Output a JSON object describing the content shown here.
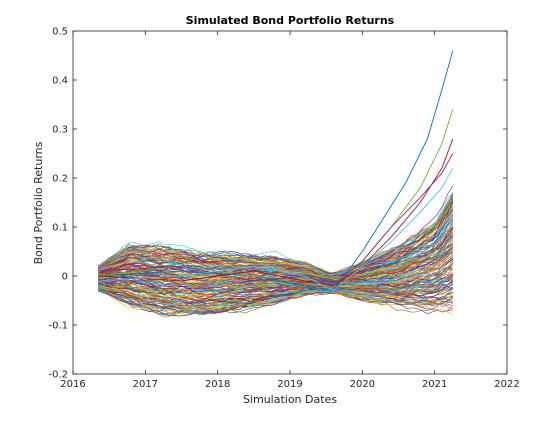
{
  "chart_data": {
    "type": "line",
    "title": "Simulated Bond Portfolio Returns",
    "xlabel": "Simulation Dates",
    "ylabel": "Bond Portfolio Returns",
    "xlim": [
      2016,
      2022
    ],
    "ylim": [
      -0.2,
      0.5
    ],
    "x_ticks": [
      "2016",
      "2017",
      "2018",
      "2019",
      "2020",
      "2021",
      "2022"
    ],
    "y_ticks": [
      "-0.2",
      "-0.1",
      "0",
      "0.1",
      "0.2",
      "0.3",
      "0.4",
      "0.5"
    ],
    "x_start": 2016.35,
    "x_end": 2021.25,
    "envelope": {
      "x": [
        2016.35,
        2016.8,
        2017.3,
        2017.8,
        2018.3,
        2018.8,
        2019.2,
        2019.6,
        2020.0,
        2020.5,
        2021.0,
        2021.25
      ],
      "upper": [
        0.03,
        0.085,
        0.08,
        0.07,
        0.065,
        0.055,
        0.035,
        0.01,
        0.04,
        0.08,
        0.14,
        0.22
      ],
      "lower": [
        -0.04,
        -0.08,
        -0.1,
        -0.1,
        -0.09,
        -0.07,
        -0.05,
        -0.04,
        -0.06,
        -0.08,
        -0.09,
        -0.1
      ]
    },
    "highlighted_series": [
      {
        "color": "#0072BD",
        "x": [
          2016.35,
          2017.5,
          2018.5,
          2019.2,
          2019.6,
          2019.8,
          2020.0,
          2020.3,
          2020.6,
          2020.9,
          2021.1,
          2021.25
        ],
        "values": [
          0.0,
          0.01,
          0.0,
          -0.02,
          -0.03,
          0.01,
          0.05,
          0.12,
          0.19,
          0.28,
          0.38,
          0.46
        ]
      },
      {
        "color": "#77AC30",
        "x": [
          2016.35,
          2017.5,
          2018.5,
          2019.2,
          2019.6,
          2020.0,
          2020.4,
          2020.8,
          2021.1,
          2021.25
        ],
        "values": [
          0.0,
          0.02,
          0.0,
          -0.01,
          -0.02,
          0.03,
          0.1,
          0.18,
          0.27,
          0.34
        ]
      },
      {
        "color": "#A2142F",
        "x": [
          2016.35,
          2017.5,
          2018.5,
          2019.2,
          2019.6,
          2020.0,
          2020.4,
          2020.8,
          2021.1,
          2021.25
        ],
        "values": [
          0.0,
          -0.01,
          0.01,
          -0.01,
          -0.02,
          0.02,
          0.08,
          0.15,
          0.22,
          0.28
        ]
      },
      {
        "color": "#7E2F8E",
        "x": [
          2016.35,
          2017.5,
          2018.5,
          2019.2,
          2019.6,
          2020.0,
          2020.4,
          2020.8,
          2021.1,
          2021.25
        ],
        "values": [
          0.01,
          0.02,
          -0.01,
          0.0,
          -0.02,
          0.03,
          0.1,
          0.16,
          0.21,
          0.25
        ]
      },
      {
        "color": "#4DBEEE",
        "x": [
          2016.35,
          2017.5,
          2018.5,
          2019.2,
          2019.6,
          2020.0,
          2020.4,
          2020.8,
          2021.1,
          2021.25
        ],
        "values": [
          -0.01,
          0.0,
          0.02,
          0.0,
          -0.03,
          0.02,
          0.07,
          0.13,
          0.18,
          0.22
        ]
      }
    ],
    "bundle_series_count": 160,
    "colors": [
      "#0072BD",
      "#D95319",
      "#EDB120",
      "#7E2F8E",
      "#77AC30",
      "#4DBEEE",
      "#A2142F"
    ],
    "grid": false,
    "legend": "none"
  }
}
